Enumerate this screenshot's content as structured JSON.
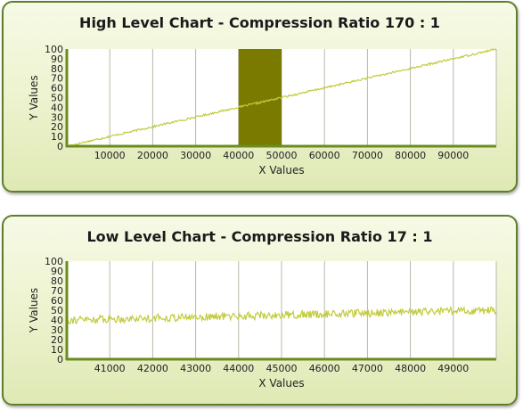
{
  "colors": {
    "line": "#c2cc3c",
    "band": "#7a7a00",
    "axis": "#6b8c1f",
    "grid": "#b8b8a8",
    "plot_bg": "#ffffff",
    "panel_border": "#5f7f2c"
  },
  "chart_data": [
    {
      "type": "line",
      "title": "High Level Chart - Compression Ratio 170 : 1",
      "xlabel": "X Values",
      "ylabel": "Y Values",
      "xlim": [
        0,
        100000
      ],
      "ylim": [
        0,
        100
      ],
      "xticks": [
        10000,
        20000,
        30000,
        40000,
        50000,
        60000,
        70000,
        80000,
        90000
      ],
      "yticks": [
        0,
        10,
        20,
        30,
        40,
        50,
        60,
        70,
        80,
        90,
        100
      ],
      "grid": true,
      "series": [
        {
          "x_start": 0,
          "x_end": 100000,
          "y_start": 0,
          "y_end": 100,
          "trend": "linear",
          "noise": 1
        }
      ],
      "highlight_range": [
        40000,
        50000
      ]
    },
    {
      "type": "line",
      "title": "Low Level Chart - Compression Ratio 17 : 1",
      "xlabel": "X Values",
      "ylabel": "Y Values",
      "xlim": [
        40000,
        50000
      ],
      "ylim": [
        0,
        100
      ],
      "xticks": [
        41000,
        42000,
        43000,
        44000,
        45000,
        46000,
        47000,
        48000,
        49000
      ],
      "yticks": [
        0,
        10,
        20,
        30,
        40,
        50,
        60,
        70,
        80,
        90,
        100
      ],
      "grid": true,
      "series": [
        {
          "x_start": 40000,
          "x_end": 50000,
          "y_start": 40,
          "y_end": 50,
          "trend": "linear",
          "noise": 4
        }
      ]
    }
  ]
}
